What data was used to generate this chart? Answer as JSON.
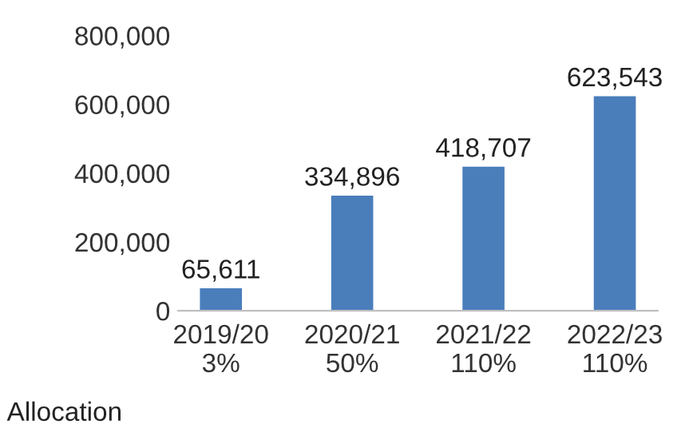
{
  "chart_data": {
    "type": "bar",
    "categories": [
      "2019/20\n3%",
      "2020/21\n50%",
      "2021/22\n110%",
      "2022/23\n110%"
    ],
    "values": [
      65611,
      334896,
      418707,
      623543
    ],
    "value_labels": [
      "65,611",
      "334,896",
      "418,707",
      "623,543"
    ],
    "color": "#4a7ebb",
    "ylim": [
      0,
      800000
    ],
    "yticks": [
      0,
      {
        "value": 200000,
        "label": "200,000"
      },
      {
        "value": 400000,
        "label": "400,000"
      },
      {
        "value": 600000,
        "label": "600,000"
      },
      {
        "value": 800000,
        "label": "800,000"
      }
    ],
    "grid": false,
    "annotations": [
      "Allocation"
    ]
  }
}
